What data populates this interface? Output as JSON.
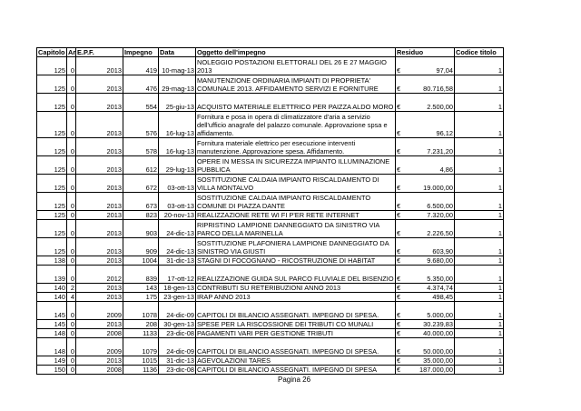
{
  "headers": [
    "Capitolo",
    "Arti",
    "E.P.F.",
    "Impegno",
    "Data",
    "Oggetto dell'impegno",
    "Residuo",
    "Codice titolo"
  ],
  "currency": "€",
  "rows": [
    {
      "capitolo": "125",
      "arti": "0",
      "epf": "2013",
      "impegno": "419",
      "data": "10-mag-13",
      "oggetto": "NOLEGGIO POSTAZIONI ELETTORALI DEL 26 E 27 MAGGIO 2013",
      "residuo": "97,04",
      "codice": "1",
      "lines": 2
    },
    {
      "capitolo": "125",
      "arti": "0",
      "epf": "2013",
      "impegno": "476",
      "data": "29-mag-13",
      "oggetto": "MANUTENZIONE ORDINARIA IMPIANTI DI PROPRIETA' COMUNALE 2013. AFFIDAMENTO SERVIZI E FORNITURE",
      "residuo": "80.716,58",
      "codice": "1",
      "lines": 2
    },
    {
      "capitolo": "125",
      "arti": "0",
      "epf": "2013",
      "impegno": "554",
      "data": "25-giu-13",
      "oggetto": "ACQUISTO MATERIALE ELETTRICO PER PAIZZA ALDO MORO",
      "residuo": "2.500,00",
      "codice": "1",
      "lines": 2
    },
    {
      "capitolo": "125",
      "arti": "0",
      "epf": "2013",
      "impegno": "576",
      "data": "16-lug-13",
      "oggetto": "Fornitura e posa in opera di climatizzatore d'aria a servizio dell'ufficio anagrafe del palazzo comunale. Approvazione spsa e affidamento.",
      "residuo": "96,12",
      "codice": "1",
      "lines": 3
    },
    {
      "capitolo": "125",
      "arti": "0",
      "epf": "2013",
      "impegno": "578",
      "data": "16-lug-13",
      "oggetto": "Fornitura materiale elettrico per esecuzione interventi manutenzione. Approvazione spesa. Affidamento.",
      "residuo": "7.231,20",
      "codice": "1",
      "lines": 2
    },
    {
      "capitolo": "125",
      "arti": "0",
      "epf": "2013",
      "impegno": "612",
      "data": "29-lug-13",
      "oggetto": "OPERE IN MESSA IN SICUREZZA IMPIANTO ILLUMINAZIONE PUBBLICA",
      "residuo": "4,86",
      "codice": "1",
      "lines": 2
    },
    {
      "capitolo": "125",
      "arti": "0",
      "epf": "2013",
      "impegno": "672",
      "data": "03-ott-13",
      "oggetto": "SOSTITUZIONE CALDAIA IMPIANTO RISCALDAMENTO DI VILLA MONTALVO",
      "residuo": "19.000,00",
      "codice": "1",
      "lines": 2
    },
    {
      "capitolo": "125",
      "arti": "0",
      "epf": "2013",
      "impegno": "673",
      "data": "03-ott-13",
      "oggetto": "SOSTITUZIONE CALDAIA IMPIANTO RISCALDAMENTO COMUNE DI PIAZZA DANTE",
      "residuo": "6.500,00",
      "codice": "1",
      "lines": 2
    },
    {
      "capitolo": "125",
      "arti": "0",
      "epf": "2013",
      "impegno": "823",
      "data": "20-nov-13",
      "oggetto": "REALIZZAZIONE RETE WI FI P'ER RETE INTERNET",
      "residuo": "7.320,00",
      "codice": "1",
      "lines": 1
    },
    {
      "capitolo": "125",
      "arti": "0",
      "epf": "2013",
      "impegno": "903",
      "data": "24-dic-13",
      "oggetto": "RIPRISTINO LAMPIONE DANNEGGIATO DA SINISTRO VIA PARCO DELLA MARINELLA",
      "residuo": "2.226,50",
      "codice": "1",
      "lines": 2
    },
    {
      "capitolo": "125",
      "arti": "0",
      "epf": "2013",
      "impegno": "909",
      "data": "24-dic-13",
      "oggetto": "SOSTITUZIONE PLAFONIERA LAMPIONE DANNEGGIATO DA SINISTRO VIA GIUSTI",
      "residuo": "603,90",
      "codice": "1",
      "lines": 2
    },
    {
      "capitolo": "138",
      "arti": "0",
      "epf": "2013",
      "impegno": "1004",
      "data": "31-dic-13",
      "oggetto": "STAGNI DI FOCOGNANO - RICOSTRUZIONE DI HABITAT",
      "residuo": "9.680,00",
      "codice": "1",
      "lines": 1
    },
    {
      "capitolo": "139",
      "arti": "0",
      "epf": "2012",
      "impegno": "839",
      "data": "17-ott-12",
      "oggetto": "REALIZZAZIONE GUIDA SUL PARCO FLUVIALE DEL BISENZIO",
      "residuo": "5.350,00",
      "codice": "1",
      "lines": 2
    },
    {
      "capitolo": "140",
      "arti": "2",
      "epf": "2013",
      "impegno": "143",
      "data": "18-gen-13",
      "oggetto": "CONTRIBUTI SU RETERIBUZIONI ANNO 2013",
      "residuo": "4.374,74",
      "codice": "1",
      "lines": 1
    },
    {
      "capitolo": "140",
      "arti": "4",
      "epf": "2013",
      "impegno": "175",
      "data": "23-gen-13",
      "oggetto": "IRAP ANNO 2013",
      "residuo": "498,45",
      "codice": "1",
      "lines": 1
    },
    {
      "capitolo": "145",
      "arti": "0",
      "epf": "2009",
      "impegno": "1078",
      "data": "24-dic-09",
      "oggetto": "CAPITOLI DI BILANCIO ASSEGNATI. IMPEGNO DI SPESA.",
      "residuo": "5.000,00",
      "codice": "1",
      "lines": 2
    },
    {
      "capitolo": "145",
      "arti": "0",
      "epf": "2013",
      "impegno": "208",
      "data": "30-gen-13",
      "oggetto": "SPESE PER LA RISCOSSIONE DEI TRIBUTI CO MUNALI",
      "residuo": "30.239,83",
      "codice": "1",
      "lines": 1
    },
    {
      "capitolo": "148",
      "arti": "0",
      "epf": "2008",
      "impegno": "1133",
      "data": "23-dic-08",
      "oggetto": "PAGAMENTI VARI PER GESTIONE TRIBUTI",
      "residuo": "40.000,00",
      "codice": "1",
      "lines": 1
    },
    {
      "capitolo": "148",
      "arti": "0",
      "epf": "2009",
      "impegno": "1079",
      "data": "24-dic-09",
      "oggetto": "CAPITOLI DI BILANCIO ASSEGNATI. IMPEGNO DI SPESA.",
      "residuo": "50.000,00",
      "codice": "1",
      "lines": 2
    },
    {
      "capitolo": "149",
      "arti": "0",
      "epf": "2013",
      "impegno": "1015",
      "data": "31-dic-13",
      "oggetto": "AGEVOLAZIONI TARES",
      "residuo": "35.000,00",
      "codice": "1",
      "lines": 1
    },
    {
      "capitolo": "150",
      "arti": "0",
      "epf": "2008",
      "impegno": "1136",
      "data": "23-dic-08",
      "oggetto": "CAPITOLI DI BILANCIO ASSEGNATI. IMPEGNO DI SPESA",
      "residuo": "187.000,00",
      "codice": "1",
      "lines": 1
    }
  ],
  "footer": {
    "page_label": "Pagina 26"
  }
}
